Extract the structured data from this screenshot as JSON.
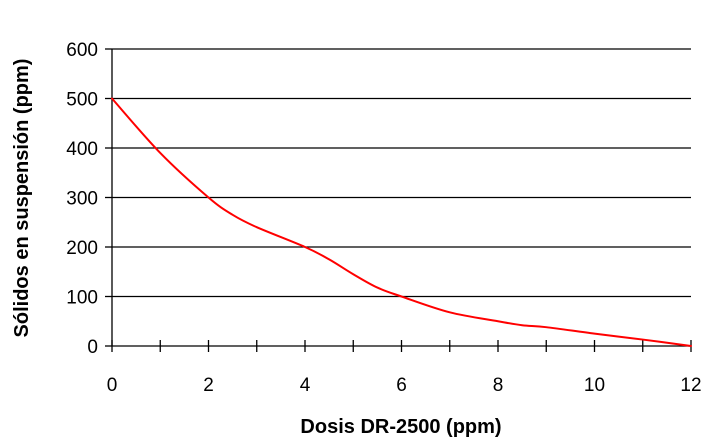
{
  "chart_data": {
    "type": "line",
    "title": "",
    "xlabel": "Dosis DR-2500 (ppm)",
    "ylabel": "Sólidos en suspensión (ppm)",
    "xlim": [
      0,
      12
    ],
    "ylim": [
      0,
      600
    ],
    "x_ticks": [
      "0",
      "2",
      "4",
      "6",
      "8",
      "10",
      "12"
    ],
    "y_ticks": [
      "0",
      "100",
      "200",
      "300",
      "400",
      "500",
      "600"
    ],
    "grid": "horizontal",
    "series": [
      {
        "color": "#ff0000",
        "x": [
          0,
          1,
          2,
          2.5,
          3,
          4,
          4.5,
          5,
          5.5,
          6,
          7,
          8,
          8.5,
          9,
          10,
          11,
          12
        ],
        "y": [
          500,
          390,
          300,
          265,
          240,
          200,
          175,
          145,
          118,
          100,
          68,
          50,
          42,
          38,
          25,
          13,
          0
        ]
      }
    ]
  }
}
